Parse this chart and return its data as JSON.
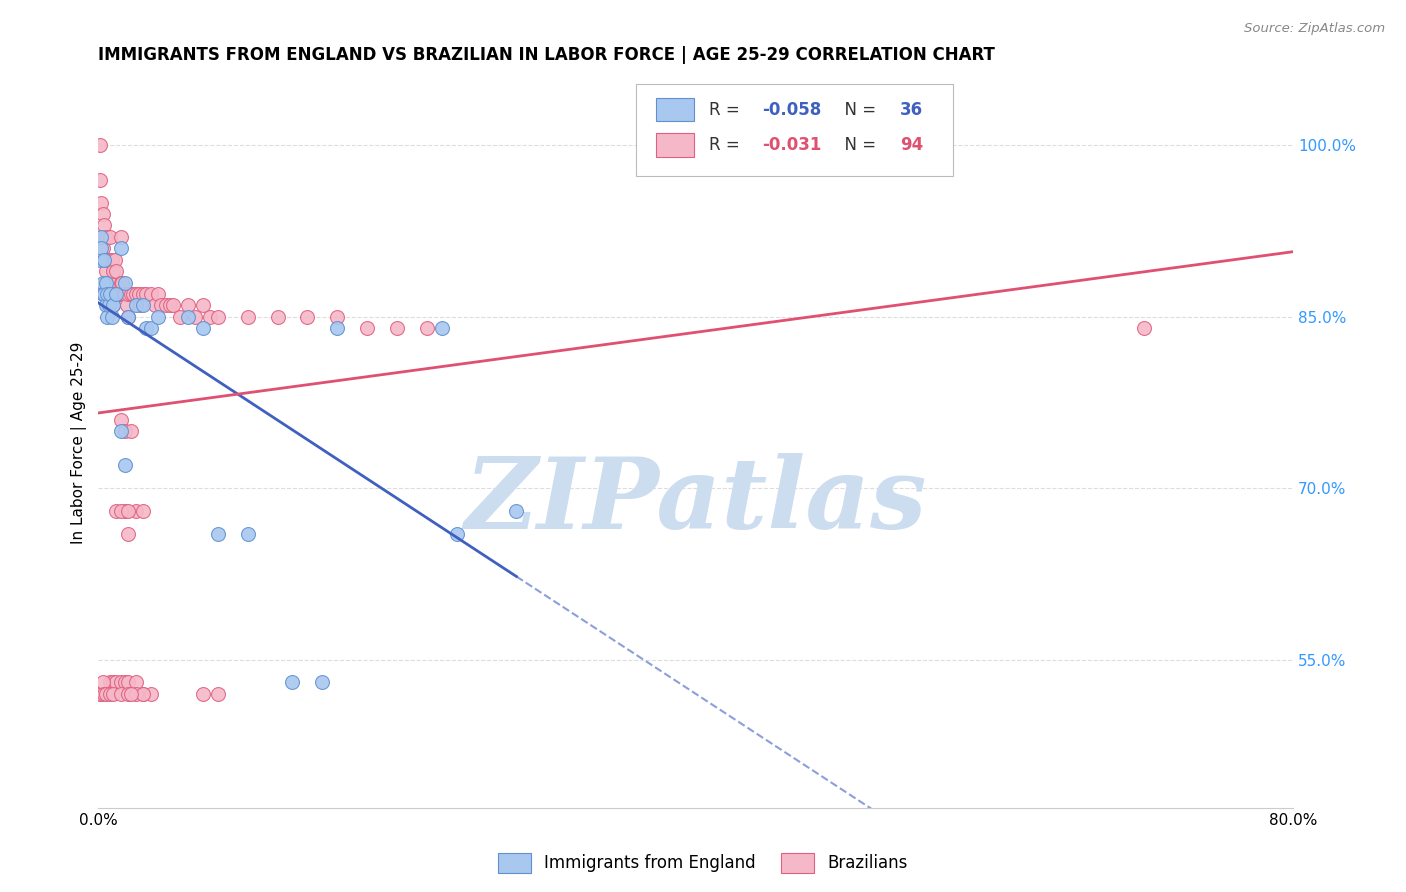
{
  "title": "IMMIGRANTS FROM ENGLAND VS BRAZILIAN IN LABOR FORCE | AGE 25-29 CORRELATION CHART",
  "source": "Source: ZipAtlas.com",
  "ylabel": "In Labor Force | Age 25-29",
  "xlim": [
    0.0,
    0.8
  ],
  "ylim": [
    0.42,
    1.06
  ],
  "yticks": [
    0.55,
    0.7,
    0.85,
    1.0
  ],
  "ytick_labels": [
    "55.0%",
    "70.0%",
    "85.0%",
    "100.0%"
  ],
  "xticks": [
    0.0,
    0.1,
    0.2,
    0.3,
    0.4,
    0.5,
    0.6,
    0.7,
    0.8
  ],
  "xtick_labels": [
    "0.0%",
    "",
    "",
    "",
    "",
    "",
    "",
    "",
    "80.0%"
  ],
  "blue_color": "#a8c8f0",
  "pink_color": "#f5b8c8",
  "blue_edge_color": "#6090d0",
  "pink_edge_color": "#e06080",
  "blue_line_color": "#4060c0",
  "pink_line_color": "#e05070",
  "legend_R_blue": "-0.058",
  "legend_N_blue": "36",
  "legend_R_pink": "-0.031",
  "legend_N_pink": "94",
  "legend_label_blue": "Immigrants from England",
  "legend_label_pink": "Brazilians",
  "blue_x": [
    0.001,
    0.002,
    0.002,
    0.003,
    0.003,
    0.004,
    0.004,
    0.005,
    0.005,
    0.006,
    0.006,
    0.007,
    0.008,
    0.009,
    0.01,
    0.012,
    0.015,
    0.018,
    0.02,
    0.025,
    0.03,
    0.032,
    0.015,
    0.018,
    0.035,
    0.04,
    0.06,
    0.07,
    0.08,
    0.1,
    0.13,
    0.15,
    0.16,
    0.23,
    0.24,
    0.28
  ],
  "blue_y": [
    0.9,
    0.92,
    0.91,
    0.88,
    0.87,
    0.9,
    0.87,
    0.88,
    0.86,
    0.87,
    0.85,
    0.86,
    0.87,
    0.85,
    0.86,
    0.87,
    0.91,
    0.88,
    0.85,
    0.86,
    0.86,
    0.84,
    0.75,
    0.72,
    0.84,
    0.85,
    0.85,
    0.84,
    0.66,
    0.66,
    0.53,
    0.53,
    0.84,
    0.84,
    0.66,
    0.68
  ],
  "pink_x": [
    0.001,
    0.001,
    0.002,
    0.002,
    0.003,
    0.003,
    0.004,
    0.004,
    0.005,
    0.005,
    0.006,
    0.006,
    0.007,
    0.007,
    0.008,
    0.008,
    0.009,
    0.009,
    0.01,
    0.01,
    0.011,
    0.011,
    0.012,
    0.013,
    0.014,
    0.015,
    0.015,
    0.016,
    0.017,
    0.018,
    0.019,
    0.02,
    0.02,
    0.022,
    0.023,
    0.025,
    0.027,
    0.028,
    0.03,
    0.032,
    0.035,
    0.038,
    0.04,
    0.042,
    0.045,
    0.048,
    0.05,
    0.055,
    0.06,
    0.065,
    0.07,
    0.075,
    0.08,
    0.1,
    0.12,
    0.14,
    0.16,
    0.18,
    0.2,
    0.22,
    0.008,
    0.01,
    0.012,
    0.015,
    0.018,
    0.02,
    0.025,
    0.03,
    0.035,
    0.025,
    0.03,
    0.02,
    0.015,
    0.018,
    0.022,
    0.001,
    0.002,
    0.003,
    0.004,
    0.005,
    0.008,
    0.01,
    0.015,
    0.02,
    0.025,
    0.03,
    0.012,
    0.018,
    0.022,
    0.07,
    0.08,
    0.7,
    0.015,
    0.02
  ],
  "pink_y": [
    1.0,
    0.97,
    0.95,
    0.92,
    0.94,
    0.91,
    0.93,
    0.9,
    0.92,
    0.89,
    0.9,
    0.87,
    0.9,
    0.88,
    0.92,
    0.88,
    0.9,
    0.87,
    0.89,
    0.86,
    0.9,
    0.87,
    0.89,
    0.87,
    0.87,
    0.88,
    0.92,
    0.88,
    0.87,
    0.87,
    0.86,
    0.87,
    0.85,
    0.87,
    0.87,
    0.87,
    0.87,
    0.86,
    0.87,
    0.87,
    0.87,
    0.86,
    0.87,
    0.86,
    0.86,
    0.86,
    0.86,
    0.85,
    0.86,
    0.85,
    0.86,
    0.85,
    0.85,
    0.85,
    0.85,
    0.85,
    0.85,
    0.84,
    0.84,
    0.84,
    0.53,
    0.53,
    0.53,
    0.53,
    0.53,
    0.53,
    0.53,
    0.52,
    0.52,
    0.68,
    0.68,
    0.66,
    0.76,
    0.75,
    0.75,
    0.52,
    0.52,
    0.53,
    0.52,
    0.52,
    0.52,
    0.52,
    0.52,
    0.52,
    0.52,
    0.52,
    0.68,
    0.68,
    0.52,
    0.52,
    0.52,
    0.84,
    0.68,
    0.68
  ],
  "watermark_color": "#ccddf0",
  "background_color": "#ffffff",
  "grid_color": "#dddddd"
}
